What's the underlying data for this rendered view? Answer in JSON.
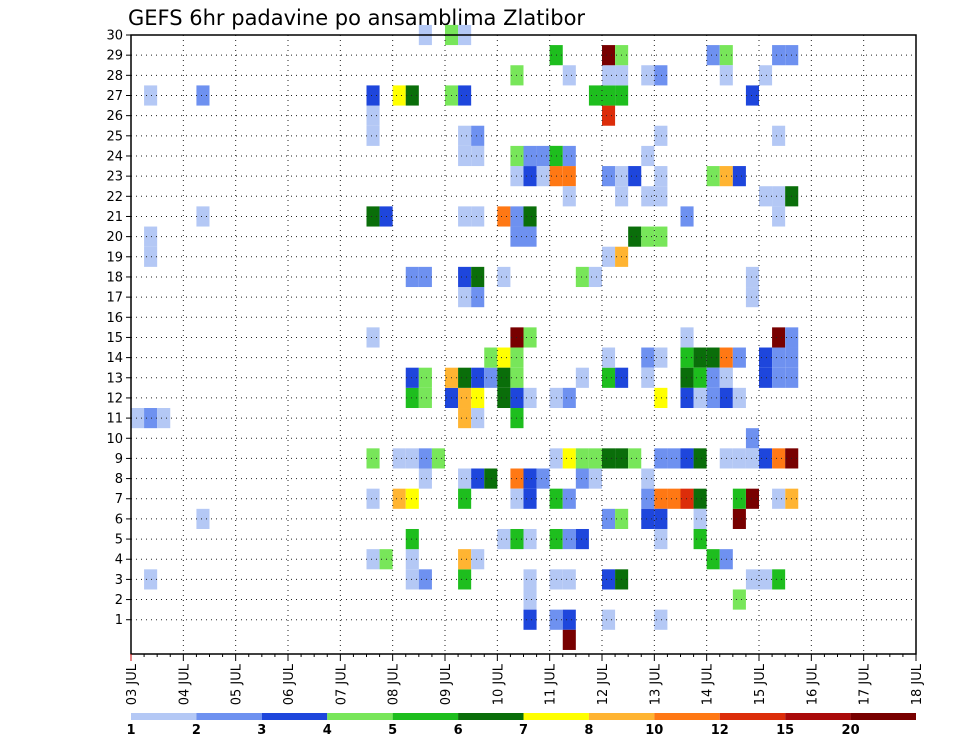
{
  "title": "GEFS 6hr padavine po ansamblima Zlatibor",
  "chart_data": {
    "type": "heatmap",
    "title": "GEFS 6hr padavine po ansamblima Zlatibor",
    "xlabel": "",
    "ylabel": "",
    "x_start": "03 JUL",
    "x_end": "18 JUL",
    "x_tick_labels": [
      "03 JUL",
      "04 JUL",
      "05 JUL",
      "06 JUL",
      "07 JUL",
      "08 JUL",
      "09 JUL",
      "10 JUL",
      "11 JUL",
      "12 JUL",
      "13 JUL",
      "14 JUL",
      "15 JUL",
      "16 JUL",
      "17 JUL",
      "18 JUL"
    ],
    "y_tick_labels": [
      "1",
      "2",
      "3",
      "4",
      "5",
      "6",
      "7",
      "8",
      "9",
      "10",
      "11",
      "12",
      "13",
      "14",
      "15",
      "16",
      "17",
      "18",
      "19",
      "20",
      "21",
      "22",
      "23",
      "24",
      "25",
      "26",
      "27",
      "28",
      "29",
      "30"
    ],
    "x_steps_per_day": 4,
    "ylim": [
      0,
      30
    ],
    "grid": true,
    "colorbar": {
      "position": "bottom",
      "colors": [
        "#b4c8f5",
        "#6e91f0",
        "#1e46dc",
        "#78e65a",
        "#1ebe1e",
        "#0a6e0a",
        "#ffff00",
        "#ffb432",
        "#ff7814",
        "#dc2d0a",
        "#aa0a0a",
        "#780000"
      ],
      "labels": [
        "1",
        "2",
        "3",
        "4",
        "5",
        "6",
        "7",
        "8",
        "10",
        "12",
        "15",
        "20"
      ]
    },
    "cells_note": "each cell: [x, y, color_index]; x = 6-hour step counted from 03 JUL 00z, y = ensemble member",
    "cells": [
      [
        1,
        3,
        0
      ],
      [
        0,
        11,
        0
      ],
      [
        1,
        11,
        1
      ],
      [
        2,
        11,
        0
      ],
      [
        1,
        19,
        0
      ],
      [
        1,
        20,
        0
      ],
      [
        1,
        27,
        0
      ],
      [
        5,
        6,
        0
      ],
      [
        5,
        21,
        0
      ],
      [
        5,
        27,
        1
      ],
      [
        18,
        25,
        0
      ],
      [
        18,
        26,
        0
      ],
      [
        18,
        27,
        2
      ],
      [
        18,
        21,
        5
      ],
      [
        19,
        21,
        2
      ],
      [
        18,
        15,
        0
      ],
      [
        18,
        9,
        3
      ],
      [
        18,
        4,
        0
      ],
      [
        19,
        4,
        3
      ],
      [
        18,
        7,
        0
      ],
      [
        21,
        18,
        1
      ],
      [
        22,
        18,
        1
      ],
      [
        20,
        9,
        0
      ],
      [
        21,
        9,
        0
      ],
      [
        22,
        9,
        1
      ],
      [
        23,
        9,
        3
      ],
      [
        20,
        7,
        7
      ],
      [
        21,
        7,
        6
      ],
      [
        21,
        12,
        4
      ],
      [
        22,
        12,
        3
      ],
      [
        21,
        13,
        2
      ],
      [
        22,
        13,
        3
      ],
      [
        21,
        3,
        0
      ],
      [
        22,
        3,
        1
      ],
      [
        21,
        4,
        0
      ],
      [
        21,
        5,
        4
      ],
      [
        20,
        27,
        6
      ],
      [
        21,
        27,
        5
      ],
      [
        22,
        8,
        0
      ],
      [
        22,
        30,
        0
      ],
      [
        24,
        27,
        3
      ],
      [
        25,
        27,
        2
      ],
      [
        24,
        30,
        3
      ],
      [
        25,
        30,
        0
      ],
      [
        25,
        8,
        0
      ],
      [
        26,
        8,
        2
      ],
      [
        27,
        8,
        5
      ],
      [
        25,
        7,
        4
      ],
      [
        25,
        3,
        4
      ],
      [
        25,
        4,
        7
      ],
      [
        26,
        4,
        0
      ],
      [
        24,
        12,
        2
      ],
      [
        25,
        12,
        7
      ],
      [
        26,
        12,
        6
      ],
      [
        24,
        13,
        7
      ],
      [
        25,
        13,
        5
      ],
      [
        26,
        13,
        2
      ],
      [
        27,
        13,
        1
      ],
      [
        27,
        14,
        3
      ],
      [
        25,
        17,
        0
      ],
      [
        26,
        17,
        1
      ],
      [
        25,
        18,
        2
      ],
      [
        26,
        18,
        5
      ],
      [
        25,
        21,
        0
      ],
      [
        26,
        21,
        0
      ],
      [
        25,
        24,
        0
      ],
      [
        26,
        24,
        0
      ],
      [
        25,
        25,
        0
      ],
      [
        26,
        25,
        1
      ],
      [
        25,
        11,
        7
      ],
      [
        26,
        11,
        0
      ],
      [
        28,
        18,
        0
      ],
      [
        28,
        21,
        8
      ],
      [
        29,
        21,
        1
      ],
      [
        30,
        21,
        5
      ],
      [
        29,
        20,
        1
      ],
      [
        30,
        20,
        1
      ],
      [
        29,
        15,
        11
      ],
      [
        30,
        15,
        3
      ],
      [
        28,
        14,
        6
      ],
      [
        29,
        14,
        3
      ],
      [
        28,
        13,
        5
      ],
      [
        29,
        13,
        3
      ],
      [
        28,
        12,
        5
      ],
      [
        29,
        12,
        2
      ],
      [
        30,
        12,
        0
      ],
      [
        29,
        11,
        4
      ],
      [
        29,
        8,
        8
      ],
      [
        30,
        8,
        2
      ],
      [
        31,
        8,
        1
      ],
      [
        30,
        7,
        2
      ],
      [
        29,
        7,
        0
      ],
      [
        28,
        5,
        0
      ],
      [
        29,
        5,
        4
      ],
      [
        30,
        5,
        0
      ],
      [
        30,
        3,
        0
      ],
      [
        30,
        2,
        0
      ],
      [
        30,
        1,
        2
      ],
      [
        29,
        23,
        0
      ],
      [
        30,
        23,
        2
      ],
      [
        29,
        24,
        3
      ],
      [
        30,
        24,
        1
      ],
      [
        29,
        28,
        3
      ],
      [
        31,
        24,
        1
      ],
      [
        32,
        24,
        3
      ],
      [
        31,
        23,
        0
      ],
      [
        32,
        23,
        8
      ],
      [
        33,
        23,
        8
      ],
      [
        32,
        24,
        4
      ],
      [
        33,
        24,
        1
      ],
      [
        32,
        12,
        0
      ],
      [
        33,
        12,
        1
      ],
      [
        32,
        9,
        0
      ],
      [
        33,
        9,
        6
      ],
      [
        34,
        9,
        3
      ],
      [
        32,
        7,
        4
      ],
      [
        33,
        7,
        1
      ],
      [
        32,
        5,
        4
      ],
      [
        33,
        5,
        1
      ],
      [
        34,
        5,
        2
      ],
      [
        32,
        3,
        0
      ],
      [
        33,
        3,
        0
      ],
      [
        32,
        1,
        1
      ],
      [
        33,
        1,
        2
      ],
      [
        33,
        0,
        11
      ],
      [
        32,
        29,
        4
      ],
      [
        33,
        28,
        0
      ],
      [
        33,
        22,
        0
      ],
      [
        34,
        18,
        3
      ],
      [
        35,
        18,
        0
      ],
      [
        34,
        13,
        0
      ],
      [
        34,
        8,
        1
      ],
      [
        35,
        8,
        0
      ],
      [
        35,
        9,
        3
      ],
      [
        36,
        9,
        5
      ],
      [
        37,
        9,
        5
      ],
      [
        36,
        13,
        4
      ],
      [
        37,
        13,
        2
      ],
      [
        36,
        14,
        0
      ],
      [
        36,
        3,
        2
      ],
      [
        37,
        3,
        5
      ],
      [
        36,
        6,
        1
      ],
      [
        37,
        6,
        3
      ],
      [
        36,
        1,
        0
      ],
      [
        36,
        19,
        0
      ],
      [
        37,
        19,
        7
      ],
      [
        36,
        23,
        1
      ],
      [
        37,
        23,
        0
      ],
      [
        37,
        22,
        0
      ],
      [
        36,
        26,
        9
      ],
      [
        36,
        27,
        4
      ],
      [
        37,
        27,
        4
      ],
      [
        35,
        27,
        4
      ],
      [
        36,
        28,
        0
      ],
      [
        37,
        28,
        0
      ],
      [
        36,
        29,
        11
      ],
      [
        37,
        29,
        3
      ],
      [
        38,
        23,
        2
      ],
      [
        38,
        20,
        5
      ],
      [
        39,
        20,
        3
      ],
      [
        40,
        20,
        3
      ],
      [
        38,
        9,
        3
      ],
      [
        39,
        8,
        0
      ],
      [
        39,
        7,
        1
      ],
      [
        40,
        7,
        8
      ],
      [
        39,
        6,
        2
      ],
      [
        40,
        6,
        2
      ],
      [
        39,
        14,
        1
      ],
      [
        39,
        13,
        0
      ],
      [
        40,
        14,
        0
      ],
      [
        40,
        12,
        6
      ],
      [
        39,
        24,
        0
      ],
      [
        40,
        23,
        0
      ],
      [
        40,
        22,
        0
      ],
      [
        39,
        22,
        0
      ],
      [
        39,
        28,
        0
      ],
      [
        40,
        28,
        1
      ],
      [
        40,
        25,
        0
      ],
      [
        40,
        9,
        1
      ],
      [
        41,
        9,
        1
      ],
      [
        40,
        5,
        0
      ],
      [
        40,
        1,
        0
      ],
      [
        42,
        21,
        1
      ],
      [
        42,
        15,
        0
      ],
      [
        42,
        14,
        4
      ],
      [
        43,
        14,
        5
      ],
      [
        42,
        13,
        5
      ],
      [
        43,
        13,
        4
      ],
      [
        42,
        12,
        2
      ],
      [
        43,
        12,
        0
      ],
      [
        42,
        9,
        2
      ],
      [
        43,
        9,
        5
      ],
      [
        42,
        7,
        9
      ],
      [
        43,
        7,
        5
      ],
      [
        41,
        7,
        8
      ],
      [
        43,
        6,
        0
      ],
      [
        43,
        5,
        4
      ],
      [
        44,
        14,
        5
      ],
      [
        45,
        14,
        8
      ],
      [
        46,
        14,
        1
      ],
      [
        44,
        13,
        1
      ],
      [
        45,
        13,
        0
      ],
      [
        44,
        12,
        1
      ],
      [
        45,
        12,
        2
      ],
      [
        46,
        12,
        0
      ],
      [
        47,
        7,
        11
      ],
      [
        46,
        6,
        11
      ],
      [
        46,
        7,
        4
      ],
      [
        44,
        4,
        4
      ],
      [
        45,
        4,
        1
      ],
      [
        45,
        9,
        0
      ],
      [
        46,
        9,
        0
      ],
      [
        44,
        29,
        1
      ],
      [
        45,
        29,
        3
      ],
      [
        45,
        28,
        0
      ],
      [
        44,
        23,
        3
      ],
      [
        45,
        23,
        7
      ],
      [
        46,
        23,
        2
      ],
      [
        47,
        27,
        2
      ],
      [
        47,
        10,
        1
      ],
      [
        47,
        9,
        0
      ],
      [
        48,
        9,
        2
      ],
      [
        49,
        9,
        8
      ],
      [
        48,
        13,
        2
      ],
      [
        49,
        13,
        1
      ],
      [
        48,
        14,
        2
      ],
      [
        49,
        14,
        1
      ],
      [
        49,
        15,
        11
      ],
      [
        50,
        15,
        1
      ],
      [
        49,
        21,
        0
      ],
      [
        48,
        22,
        0
      ],
      [
        49,
        22,
        0
      ],
      [
        50,
        22,
        5
      ],
      [
        49,
        29,
        1
      ],
      [
        50,
        29,
        1
      ],
      [
        48,
        28,
        0
      ],
      [
        49,
        25,
        0
      ],
      [
        50,
        9,
        11
      ],
      [
        50,
        13,
        1
      ],
      [
        50,
        14,
        1
      ],
      [
        50,
        7,
        7
      ],
      [
        49,
        7,
        0
      ],
      [
        49,
        3,
        4
      ],
      [
        48,
        3,
        0
      ],
      [
        47,
        3,
        0
      ],
      [
        47,
        18,
        0
      ],
      [
        47,
        17,
        0
      ],
      [
        46,
        2,
        3
      ]
    ]
  }
}
